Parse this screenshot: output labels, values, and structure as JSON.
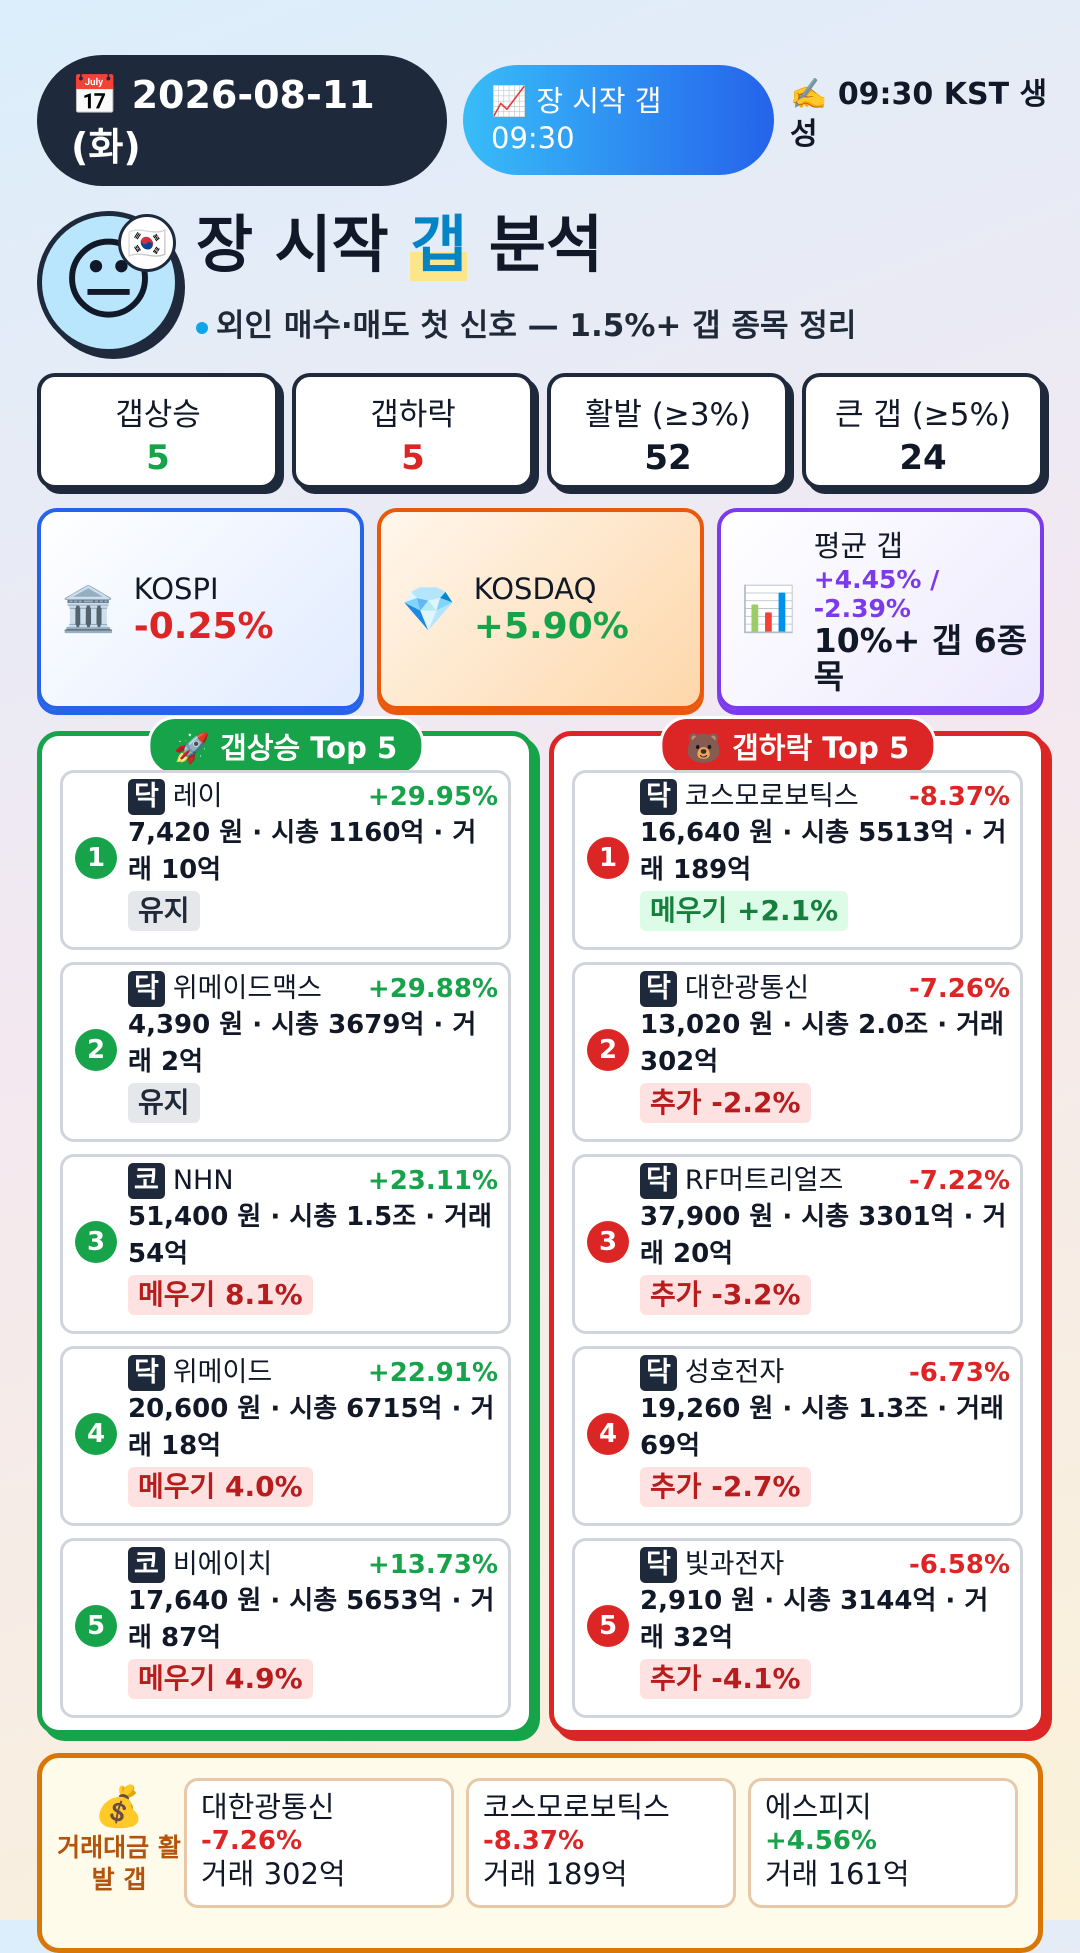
{
  "header": {
    "date_icon": "📅",
    "date": "2026-08-11 (화)",
    "badge_icon": "📈",
    "badge": "장 시작 갭 09:30",
    "generated_icon": "✍️",
    "generated": "09:30 KST 생성"
  },
  "title": {
    "face": "😐",
    "flag": "🇰🇷",
    "before": "장 시작 ",
    "highlight": "갭",
    "after": " 분석",
    "subtitle": "외인 매수·매도 첫 신호 — 1.5%+ 갭 종목 정리"
  },
  "stats": [
    {
      "label": "갭상승",
      "value": "5",
      "color": "#16a34a"
    },
    {
      "label": "갭하락",
      "value": "5",
      "color": "#dc2626"
    },
    {
      "label": "활발 (≥3%)",
      "value": "52",
      "color": "#111827"
    },
    {
      "label": "큰 갭 (≥5%)",
      "value": "24",
      "color": "#111827"
    }
  ],
  "indices": [
    {
      "icon": "🏛️",
      "label": "KOSPI",
      "value": "-0.25%",
      "color": "#dc2626"
    },
    {
      "icon": "💎",
      "label": "KOSDAQ",
      "value": "+5.90%",
      "color": "#16a34a"
    },
    {
      "icon": "📊",
      "label": "평균 갭",
      "value": "+4.45% / -2.39%",
      "color": "#7c3aed",
      "note": "10%+ 갭 6종목"
    }
  ],
  "gainers": {
    "icon": "🚀",
    "title": "갭상승 Top 5",
    "items": [
      {
        "rank": "1",
        "market": "닥",
        "name": "레이",
        "change": "+29.95%",
        "detail": "7,420 원 · 시총 1160억 · 거래 10억",
        "tag": "유지",
        "tag_color": "gray"
      },
      {
        "rank": "2",
        "market": "닥",
        "name": "위메이드맥스",
        "change": "+29.88%",
        "detail": "4,390 원 · 시총 3679억 · 거래 2억",
        "tag": "유지",
        "tag_color": "gray"
      },
      {
        "rank": "3",
        "market": "코",
        "name": "NHN",
        "change": "+23.11%",
        "detail": "51,400 원 · 시총 1.5조 · 거래 54억",
        "tag": "메우기 8.1%",
        "tag_color": "red"
      },
      {
        "rank": "4",
        "market": "닥",
        "name": "위메이드",
        "change": "+22.91%",
        "detail": "20,600 원 · 시총 6715억 · 거래 18억",
        "tag": "메우기 4.0%",
        "tag_color": "red"
      },
      {
        "rank": "5",
        "market": "코",
        "name": "비에이치",
        "change": "+13.73%",
        "detail": "17,640 원 · 시총 5653억 · 거래 87억",
        "tag": "메우기 4.9%",
        "tag_color": "red"
      }
    ]
  },
  "losers": {
    "icon": "🐻",
    "title": "갭하락 Top 5",
    "items": [
      {
        "rank": "1",
        "market": "닥",
        "name": "코스모로보틱스",
        "change": "-8.37%",
        "detail": "16,640 원 · 시총 5513억 · 거래 189억",
        "tag": "메우기 +2.1%",
        "tag_color": "green"
      },
      {
        "rank": "2",
        "market": "닥",
        "name": "대한광통신",
        "change": "-7.26%",
        "detail": "13,020 원 · 시총 2.0조 · 거래 302억",
        "tag": "추가 -2.2%",
        "tag_color": "red"
      },
      {
        "rank": "3",
        "market": "닥",
        "name": "RF머트리얼즈",
        "change": "-7.22%",
        "detail": "37,900 원 · 시총 3301억 · 거래 20억",
        "tag": "추가 -3.2%",
        "tag_color": "red"
      },
      {
        "rank": "4",
        "market": "닥",
        "name": "성호전자",
        "change": "-6.73%",
        "detail": "19,260 원 · 시총 1.3조 · 거래 69억",
        "tag": "추가 -2.7%",
        "tag_color": "red"
      },
      {
        "rank": "5",
        "market": "닥",
        "name": "빛과전자",
        "change": "-6.58%",
        "detail": "2,910 원 · 시총 3144억 · 거래 32억",
        "tag": "추가 -4.1%",
        "tag_color": "red"
      }
    ]
  },
  "volume": {
    "icon": "💰",
    "title": "거래대금 활발 갭",
    "items": [
      {
        "name": "대한광통신",
        "change": "-7.26%",
        "trade": "거래 302억",
        "color": "#dc2626"
      },
      {
        "name": "코스모로보틱스",
        "change": "-8.37%",
        "trade": "거래 189억",
        "color": "#dc2626"
      },
      {
        "name": "에스피지",
        "change": "+4.56%",
        "trade": "거래 161억",
        "color": "#16a34a"
      }
    ]
  }
}
